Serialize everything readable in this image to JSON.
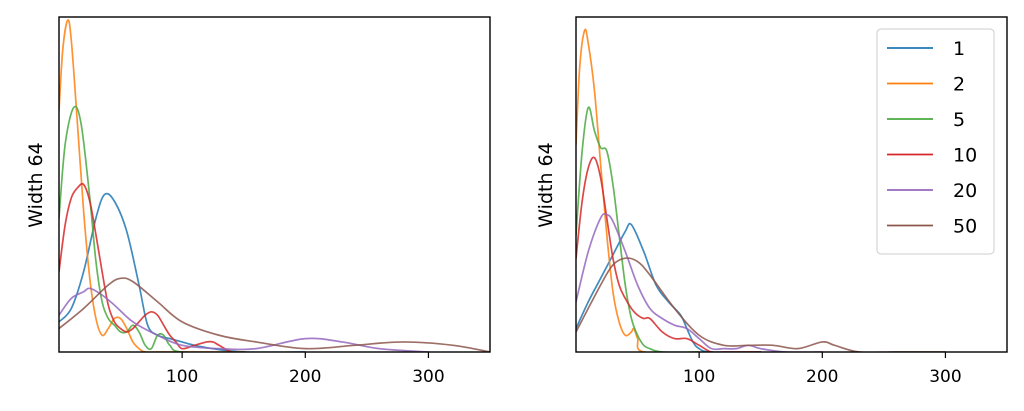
{
  "chart_data": [
    {
      "type": "line",
      "title": "",
      "xlabel": "",
      "ylabel": "Width 64",
      "xlim": [
        0,
        350
      ],
      "ylim": [
        0,
        1.0
      ],
      "xticks": [
        100,
        200,
        300
      ],
      "show_yticks": false,
      "grid": false,
      "legend": null,
      "series": [
        {
          "name": "1",
          "color": "#1f77b4",
          "x": [
            0,
            10,
            20,
            30,
            37,
            45,
            55,
            65,
            72,
            80,
            90,
            100,
            110,
            125,
            150,
            200
          ],
          "y": [
            0.09,
            0.13,
            0.24,
            0.4,
            0.47,
            0.45,
            0.36,
            0.2,
            0.08,
            0.05,
            0.04,
            0.03,
            0.02,
            0.01,
            0.0,
            0.0
          ]
        },
        {
          "name": "2",
          "color": "#ff7f0e",
          "x": [
            0,
            3,
            7,
            10,
            15,
            20,
            25,
            30,
            35,
            40,
            45,
            50,
            55,
            60,
            65,
            70,
            80,
            100,
            150
          ],
          "y": [
            0.72,
            0.9,
            0.99,
            0.93,
            0.68,
            0.42,
            0.22,
            0.1,
            0.05,
            0.07,
            0.1,
            0.1,
            0.07,
            0.03,
            0.01,
            0.0,
            0.0,
            0.0,
            0.0
          ]
        },
        {
          "name": "5",
          "color": "#4aa83f",
          "x": [
            0,
            5,
            12,
            18,
            25,
            30,
            35,
            40,
            45,
            50,
            55,
            60,
            65,
            70,
            75,
            80,
            85,
            90,
            100,
            150
          ],
          "y": [
            0.4,
            0.62,
            0.73,
            0.68,
            0.46,
            0.27,
            0.15,
            0.1,
            0.08,
            0.06,
            0.06,
            0.08,
            0.06,
            0.02,
            0.01,
            0.05,
            0.05,
            0.02,
            0.0,
            0.0
          ]
        },
        {
          "name": "10",
          "color": "#d62728",
          "x": [
            0,
            5,
            10,
            15,
            20,
            25,
            30,
            35,
            40,
            45,
            50,
            55,
            60,
            65,
            70,
            75,
            80,
            85,
            90,
            95,
            100,
            110,
            120,
            125,
            130,
            140,
            150
          ],
          "y": [
            0.24,
            0.38,
            0.46,
            0.49,
            0.5,
            0.45,
            0.35,
            0.24,
            0.14,
            0.09,
            0.07,
            0.06,
            0.07,
            0.09,
            0.11,
            0.12,
            0.11,
            0.08,
            0.05,
            0.03,
            0.01,
            0.02,
            0.03,
            0.03,
            0.02,
            0.0,
            0.0
          ]
        },
        {
          "name": "20",
          "color": "#9467bd",
          "x": [
            0,
            10,
            20,
            25,
            35,
            45,
            60,
            80,
            100,
            130,
            160,
            200,
            230,
            260,
            300
          ],
          "y": [
            0.11,
            0.16,
            0.18,
            0.19,
            0.17,
            0.14,
            0.09,
            0.05,
            0.02,
            0.01,
            0.01,
            0.04,
            0.03,
            0.01,
            0.0
          ]
        },
        {
          "name": "50",
          "color": "#8c564b",
          "x": [
            0,
            20,
            40,
            50,
            60,
            80,
            100,
            130,
            160,
            200,
            240,
            280,
            320,
            350
          ],
          "y": [
            0.07,
            0.13,
            0.2,
            0.22,
            0.21,
            0.15,
            0.09,
            0.05,
            0.03,
            0.01,
            0.02,
            0.03,
            0.02,
            0.0
          ]
        }
      ]
    },
    {
      "type": "line",
      "title": "",
      "xlabel": "",
      "ylabel": "Width 64",
      "xlim": [
        0,
        350
      ],
      "ylim": [
        0,
        1.0
      ],
      "xticks": [
        100,
        200,
        300
      ],
      "show_yticks": false,
      "grid": false,
      "legend": "top-right",
      "series": [
        {
          "name": "1",
          "color": "#1f77b4",
          "x": [
            0,
            10,
            20,
            30,
            40,
            45,
            55,
            65,
            75,
            85,
            90,
            95,
            100,
            110,
            150
          ],
          "y": [
            0.07,
            0.15,
            0.22,
            0.29,
            0.36,
            0.38,
            0.3,
            0.2,
            0.15,
            0.11,
            0.07,
            0.03,
            0.01,
            0.0,
            0.0
          ]
        },
        {
          "name": "2",
          "color": "#ff7f0e",
          "x": [
            0,
            3,
            7,
            10,
            15,
            20,
            25,
            30,
            35,
            40,
            45,
            47,
            50,
            55,
            100
          ],
          "y": [
            0.62,
            0.85,
            0.96,
            0.92,
            0.78,
            0.56,
            0.35,
            0.18,
            0.09,
            0.05,
            0.06,
            0.07,
            0.04,
            0.0,
            0.0
          ]
        },
        {
          "name": "5",
          "color": "#4aa83f",
          "x": [
            0,
            5,
            10,
            15,
            20,
            25,
            30,
            35,
            40,
            45,
            50,
            55,
            60,
            70,
            100
          ],
          "y": [
            0.35,
            0.6,
            0.73,
            0.66,
            0.61,
            0.6,
            0.5,
            0.35,
            0.2,
            0.1,
            0.05,
            0.02,
            0.01,
            0.0,
            0.0
          ]
        },
        {
          "name": "10",
          "color": "#d62728",
          "x": [
            0,
            5,
            10,
            15,
            20,
            25,
            30,
            35,
            40,
            45,
            50,
            55,
            60,
            70,
            80,
            90,
            100,
            110,
            120,
            150
          ],
          "y": [
            0.28,
            0.45,
            0.55,
            0.58,
            0.52,
            0.4,
            0.28,
            0.2,
            0.16,
            0.13,
            0.11,
            0.1,
            0.1,
            0.06,
            0.04,
            0.04,
            0.02,
            0.0,
            0.0,
            0.0
          ]
        },
        {
          "name": "20",
          "color": "#9467bd",
          "x": [
            0,
            10,
            20,
            25,
            30,
            40,
            50,
            60,
            70,
            80,
            90,
            100,
            110,
            120,
            130,
            140,
            150,
            170,
            200
          ],
          "y": [
            0.15,
            0.3,
            0.4,
            0.41,
            0.39,
            0.3,
            0.2,
            0.13,
            0.1,
            0.08,
            0.07,
            0.04,
            0.01,
            0.01,
            0.01,
            0.02,
            0.01,
            0.0,
            0.0
          ]
        },
        {
          "name": "50",
          "color": "#8c564b",
          "x": [
            0,
            20,
            30,
            40,
            50,
            60,
            80,
            100,
            120,
            140,
            160,
            180,
            200,
            210,
            230,
            260,
            300
          ],
          "y": [
            0.06,
            0.2,
            0.26,
            0.28,
            0.27,
            0.23,
            0.13,
            0.05,
            0.02,
            0.02,
            0.02,
            0.01,
            0.03,
            0.02,
            0.0,
            0.0,
            0.0
          ]
        }
      ]
    }
  ]
}
